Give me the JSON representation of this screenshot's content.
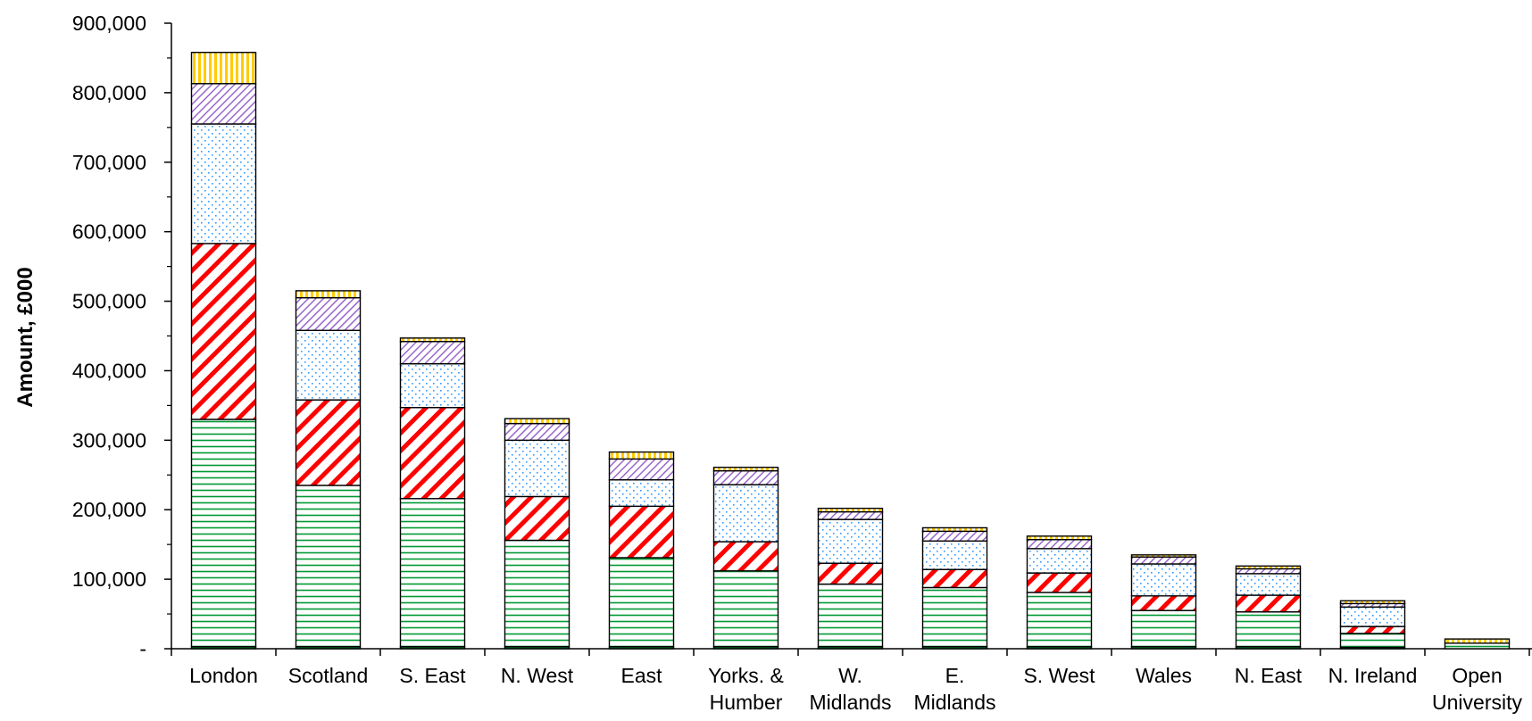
{
  "chart_data": {
    "type": "bar",
    "stacked": true,
    "ylabel": "Amount, £000",
    "xlabel": "",
    "ylim": [
      0,
      900000
    ],
    "yticks": [
      0,
      100000,
      200000,
      300000,
      400000,
      500000,
      600000,
      700000,
      800000,
      900000
    ],
    "ytick_labels": [
      "-",
      "100,000",
      "200,000",
      "300,000",
      "400,000",
      "500,000",
      "600,000",
      "700,000",
      "800,000",
      "900,000"
    ],
    "categories": [
      [
        "London"
      ],
      [
        "Scotland"
      ],
      [
        "S. East"
      ],
      [
        "N. West"
      ],
      [
        "East"
      ],
      [
        "Yorks. &",
        "Humber"
      ],
      [
        "W.",
        "Midlands"
      ],
      [
        "E.",
        "Midlands"
      ],
      [
        "S. West"
      ],
      [
        "Wales"
      ],
      [
        "N. East"
      ],
      [
        "N. Ireland"
      ],
      [
        "Open",
        "University"
      ]
    ],
    "series": [
      {
        "values": [
          3000,
          3000,
          3000,
          3000,
          3000,
          3000,
          3000,
          3000,
          3000,
          3000,
          3000,
          2000,
          0
        ],
        "color": "#007a2e",
        "pattern": "solid"
      },
      {
        "values": [
          327000,
          232000,
          213000,
          153000,
          128000,
          109000,
          90000,
          85000,
          78000,
          52000,
          50000,
          20000,
          8000
        ],
        "color": "#009933",
        "pattern": "horizontal"
      },
      {
        "values": [
          253000,
          123000,
          131000,
          63000,
          74000,
          42000,
          30000,
          26000,
          28000,
          21000,
          24000,
          10000,
          0
        ],
        "color": "#ff0000",
        "pattern": "diagonal"
      },
      {
        "values": [
          172000,
          100000,
          63000,
          81000,
          38000,
          82000,
          63000,
          41000,
          35000,
          46000,
          31000,
          28000,
          0
        ],
        "color": "#3399ff",
        "pattern": "dots"
      },
      {
        "values": [
          58000,
          47000,
          32000,
          24000,
          30000,
          20000,
          11000,
          14000,
          13000,
          10000,
          7000,
          5000,
          0
        ],
        "color": "#9966cc",
        "pattern": "diagonal"
      },
      {
        "values": [
          45000,
          10000,
          5000,
          7000,
          10000,
          5000,
          5000,
          5000,
          5000,
          3000,
          4000,
          4000,
          6000
        ],
        "color": "#ffcc00",
        "pattern": "vertical"
      }
    ],
    "grid": false,
    "legend": "none"
  }
}
